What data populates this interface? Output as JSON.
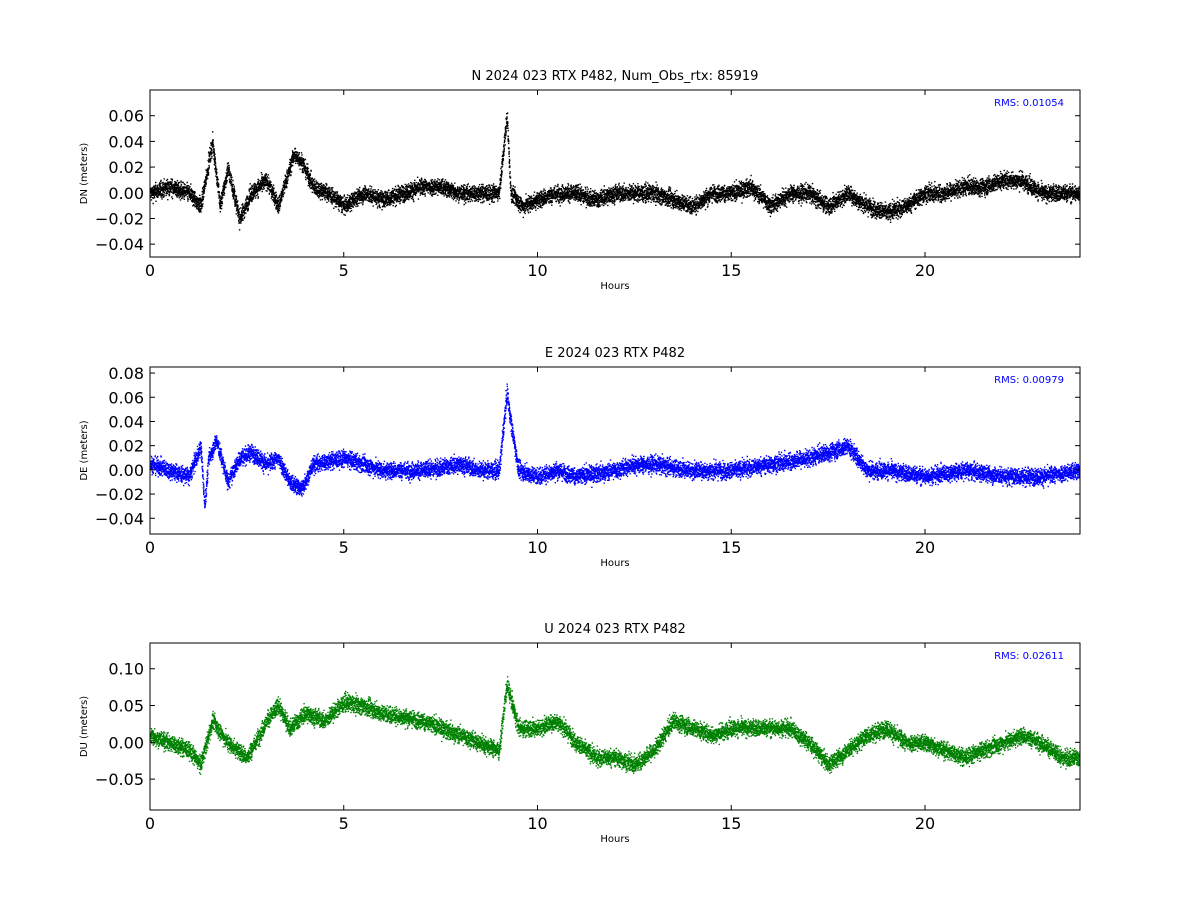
{
  "chart_data": [
    {
      "type": "scatter",
      "title": "N 2024 023 RTX  P482, Num_Obs_rtx: 85919",
      "xlabel": "Hours",
      "ylabel": "DN (meters)",
      "xlim": [
        0,
        24
      ],
      "ylim": [
        -0.05,
        0.08
      ],
      "x_ticks": [
        0,
        5,
        10,
        15,
        20
      ],
      "x_tick_labels": [
        "0",
        "5",
        "10",
        "15",
        "20"
      ],
      "y_ticks": [
        -0.04,
        -0.02,
        0.0,
        0.02,
        0.04,
        0.06
      ],
      "y_tick_labels": [
        "−0.04",
        "−0.02",
        "0.00",
        "0.02",
        "0.04",
        "0.06"
      ],
      "annotation": "RMS:  0.01054",
      "color": "#000000",
      "grid": false,
      "series": [
        {
          "x": [
            0,
            0.5,
            1,
            1.3,
            1.6,
            1.8,
            2.0,
            2.3,
            2.6,
            3.0,
            3.3,
            3.7,
            3.9,
            4.2,
            4.6,
            5.0,
            5.5,
            6.0,
            6.5,
            7.0,
            7.5,
            8.0,
            8.5,
            9.0,
            9.2,
            9.3,
            9.6,
            10.0,
            10.5,
            11.0,
            11.5,
            12.0,
            12.5,
            13.0,
            13.5,
            14.0,
            14.5,
            15.0,
            15.5,
            16.0,
            16.5,
            17.0,
            17.5,
            18.0,
            18.5,
            19.0,
            19.5,
            20.0,
            20.5,
            21.0,
            21.5,
            22.0,
            22.5,
            23.0,
            23.5,
            24.0
          ],
          "y": [
            0.0,
            0.005,
            0.0,
            -0.01,
            0.04,
            -0.01,
            0.02,
            -0.02,
            0.0,
            0.01,
            -0.01,
            0.03,
            0.025,
            0.005,
            0.0,
            -0.01,
            0.0,
            -0.005,
            0.0,
            0.005,
            0.005,
            0.0,
            0.0,
            0.0,
            0.06,
            0.0,
            -0.01,
            -0.005,
            0.0,
            0.0,
            -0.005,
            0.0,
            0.0,
            0.0,
            -0.005,
            -0.01,
            0.0,
            0.0,
            0.005,
            -0.01,
            0.0,
            0.0,
            -0.01,
            0.0,
            -0.01,
            -0.015,
            -0.01,
            0.0,
            0.0,
            0.005,
            0.005,
            0.01,
            0.01,
            0.0,
            0.0,
            0.0
          ]
        }
      ]
    },
    {
      "type": "scatter",
      "title": "E 2024 023 RTX  P482",
      "xlabel": "Hours",
      "ylabel": "DE (meters)",
      "xlim": [
        0,
        24
      ],
      "ylim": [
        -0.053,
        0.085
      ],
      "x_ticks": [
        0,
        5,
        10,
        15,
        20
      ],
      "x_tick_labels": [
        "0",
        "5",
        "10",
        "15",
        "20"
      ],
      "y_ticks": [
        -0.04,
        -0.02,
        0.0,
        0.02,
        0.04,
        0.06,
        0.08
      ],
      "y_tick_labels": [
        "−0.04",
        "−0.02",
        "0.00",
        "0.02",
        "0.04",
        "0.06",
        "0.08"
      ],
      "annotation": "RMS:  0.00979",
      "color": "#0000ff",
      "grid": false,
      "series": [
        {
          "x": [
            0,
            0.5,
            1,
            1.3,
            1.4,
            1.5,
            1.7,
            2.0,
            2.3,
            2.6,
            3.0,
            3.3,
            3.6,
            3.9,
            4.2,
            5.0,
            5.5,
            6.0,
            7.0,
            8.0,
            8.5,
            9.0,
            9.2,
            9.3,
            9.5,
            10.0,
            10.5,
            11.0,
            12.0,
            12.5,
            13.0,
            14.0,
            15.0,
            16.0,
            17.0,
            17.5,
            18.0,
            18.5,
            19.0,
            20.0,
            21.0,
            22.0,
            23.0,
            24.0
          ],
          "y": [
            0.005,
            0.0,
            -0.005,
            0.02,
            -0.03,
            0.01,
            0.025,
            -0.01,
            0.01,
            0.015,
            0.005,
            0.01,
            -0.01,
            -0.015,
            0.005,
            0.01,
            0.005,
            0.0,
            0.0,
            0.005,
            0.0,
            0.0,
            0.065,
            0.04,
            0.0,
            -0.005,
            0.0,
            -0.005,
            0.0,
            0.005,
            0.005,
            0.0,
            0.0,
            0.005,
            0.01,
            0.015,
            0.02,
            0.0,
            0.0,
            -0.005,
            0.0,
            -0.005,
            -0.005,
            0.0
          ]
        }
      ]
    },
    {
      "type": "scatter",
      "title": "U 2024 023 RTX  P482",
      "xlabel": "Hours",
      "ylabel": "DU (meters)",
      "xlim": [
        0,
        24
      ],
      "ylim": [
        -0.092,
        0.135
      ],
      "x_ticks": [
        0,
        5,
        10,
        15,
        20
      ],
      "x_tick_labels": [
        "0",
        "5",
        "10",
        "15",
        "20"
      ],
      "y_ticks": [
        -0.05,
        0.0,
        0.05,
        0.1
      ],
      "y_tick_labels": [
        "−0.05",
        "0.00",
        "0.05",
        "0.10"
      ],
      "annotation": "RMS:  0.02611",
      "color": "#008000",
      "grid": false,
      "series": [
        {
          "x": [
            0,
            0.5,
            1.0,
            1.3,
            1.6,
            2.0,
            2.5,
            3.0,
            3.3,
            3.6,
            4.0,
            4.5,
            5.0,
            5.5,
            6.0,
            6.5,
            7.0,
            7.5,
            8.0,
            8.5,
            9.0,
            9.2,
            9.5,
            10.0,
            10.5,
            11.0,
            11.5,
            12.0,
            12.5,
            13.0,
            13.5,
            14.0,
            14.5,
            15.0,
            15.5,
            16.0,
            16.5,
            17.0,
            17.5,
            18.0,
            18.5,
            19.0,
            19.5,
            20.0,
            20.5,
            21.0,
            21.5,
            22.0,
            22.5,
            23.0,
            23.5,
            24.0
          ],
          "y": [
            0.01,
            0.0,
            -0.01,
            -0.03,
            0.03,
            0.0,
            -0.02,
            0.03,
            0.05,
            0.02,
            0.04,
            0.03,
            0.055,
            0.05,
            0.04,
            0.035,
            0.03,
            0.02,
            0.01,
            0.0,
            -0.01,
            0.08,
            0.02,
            0.02,
            0.03,
            0.0,
            -0.02,
            -0.02,
            -0.03,
            -0.01,
            0.03,
            0.02,
            0.01,
            0.02,
            0.02,
            0.02,
            0.02,
            0.0,
            -0.03,
            -0.01,
            0.01,
            0.02,
            0.0,
            0.0,
            -0.01,
            -0.02,
            -0.01,
            0.0,
            0.01,
            0.0,
            -0.02,
            -0.02
          ]
        }
      ]
    }
  ]
}
